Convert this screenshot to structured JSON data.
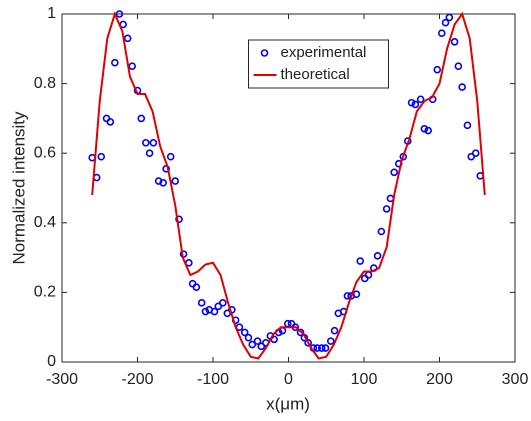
{
  "chart_data": {
    "type": "scatter",
    "xlabel": "x(μm)",
    "ylabel": "Normalized intensity",
    "xlim": [
      -300,
      300
    ],
    "xticks": [
      -300,
      -200,
      -100,
      0,
      100,
      200,
      300
    ],
    "ylim": [
      0,
      1
    ],
    "yticks": [
      0,
      0.2,
      0.4,
      0.6,
      0.8,
      1
    ],
    "legend": "upper center",
    "series": [
      {
        "name": "experimental",
        "type": "scatter",
        "color": "#0000ff",
        "x": [
          -260,
          -254,
          -248,
          -241,
          -236,
          -230,
          -224,
          -219,
          -213,
          -207,
          -200,
          -195,
          -189,
          -184,
          -179,
          -172,
          -166,
          -162,
          -156,
          -150,
          -145,
          -139,
          -132,
          -127,
          -122,
          -115,
          -110,
          -105,
          -98,
          -93,
          -87,
          -81,
          -75,
          -70,
          -65,
          -58,
          -53,
          -48,
          -41,
          -36,
          -30,
          -24,
          -19,
          -13,
          -8,
          -1,
          4,
          9,
          16,
          21,
          26,
          33,
          38,
          44,
          49,
          56,
          61,
          66,
          73,
          78,
          83,
          90,
          95,
          101,
          106,
          113,
          118,
          123,
          130,
          135,
          140,
          146,
          152,
          158,
          163,
          168,
          175,
          180,
          185,
          191,
          197,
          203,
          208,
          213,
          220,
          225,
          230,
          237,
          242,
          248,
          254
        ],
        "values": [
          0.587,
          0.53,
          0.59,
          0.7,
          0.69,
          0.86,
          1.0,
          0.97,
          0.93,
          0.85,
          0.78,
          0.7,
          0.63,
          0.6,
          0.63,
          0.52,
          0.515,
          0.555,
          0.59,
          0.52,
          0.41,
          0.31,
          0.285,
          0.225,
          0.215,
          0.17,
          0.145,
          0.15,
          0.145,
          0.16,
          0.17,
          0.14,
          0.15,
          0.12,
          0.1,
          0.085,
          0.07,
          0.05,
          0.06,
          0.045,
          0.055,
          0.075,
          0.065,
          0.085,
          0.09,
          0.11,
          0.11,
          0.1,
          0.085,
          0.07,
          0.055,
          0.04,
          0.04,
          0.04,
          0.04,
          0.06,
          0.09,
          0.14,
          0.145,
          0.19,
          0.19,
          0.195,
          0.29,
          0.24,
          0.25,
          0.27,
          0.305,
          0.375,
          0.44,
          0.47,
          0.545,
          0.57,
          0.59,
          0.635,
          0.745,
          0.74,
          0.755,
          0.67,
          0.665,
          0.755,
          0.84,
          0.945,
          0.975,
          0.99,
          0.92,
          0.85,
          0.79,
          0.68,
          0.59,
          0.6,
          0.535
        ]
      },
      {
        "name": "theoretical",
        "type": "line",
        "color": "#e00000",
        "x": [
          -260,
          -250,
          -240,
          -230,
          -220,
          -210,
          -200,
          -190,
          -180,
          -170,
          -160,
          -150,
          -140,
          -130,
          -120,
          -110,
          -100,
          -90,
          -80,
          -70,
          -60,
          -50,
          -40,
          -30,
          -20,
          -10,
          0,
          10,
          20,
          30,
          40,
          50,
          60,
          70,
          80,
          90,
          100,
          110,
          120,
          130,
          140,
          150,
          160,
          170,
          180,
          190,
          200,
          210,
          220,
          230,
          240,
          250,
          260
        ],
        "values": [
          0.48,
          0.75,
          0.93,
          1.0,
          0.95,
          0.82,
          0.77,
          0.77,
          0.72,
          0.62,
          0.56,
          0.45,
          0.3,
          0.25,
          0.26,
          0.28,
          0.285,
          0.25,
          0.17,
          0.1,
          0.05,
          0.015,
          0.01,
          0.04,
          0.08,
          0.1,
          0.1,
          0.1,
          0.08,
          0.04,
          0.01,
          0.015,
          0.05,
          0.1,
          0.17,
          0.23,
          0.26,
          0.26,
          0.27,
          0.33,
          0.48,
          0.58,
          0.64,
          0.72,
          0.75,
          0.76,
          0.8,
          0.9,
          0.97,
          1.0,
          0.93,
          0.75,
          0.48
        ]
      }
    ]
  }
}
